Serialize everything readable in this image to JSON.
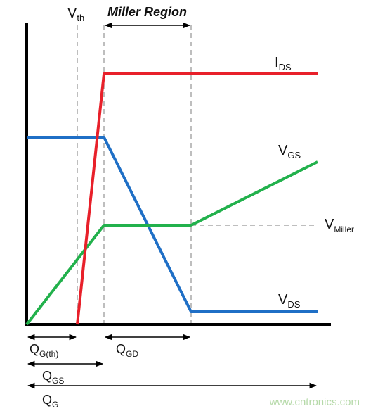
{
  "labels": {
    "vth_main": "V",
    "vth_sub": "th",
    "miller_region": "Miller Region",
    "ids_main": "I",
    "ids_sub": "DS",
    "vgs_main": "V",
    "vgs_sub": "GS",
    "vmiller_main": "V",
    "vmiller_sub": "Miller",
    "vds_main": "V",
    "vds_sub": "DS",
    "qgth_main": "Q",
    "qgth_sub": "G(th)",
    "qgd_main": "Q",
    "qgd_sub": "GD",
    "qgs_main": "Q",
    "qgs_sub": "GS",
    "qg_main": "Q",
    "qg_sub": "G"
  },
  "watermark": "www.cntronics.com",
  "colors": {
    "ids": "#e8202a",
    "vgs": "#22b14c",
    "vds": "#1f6fc6",
    "axis": "#000000",
    "guide": "#a8a8a8"
  }
}
